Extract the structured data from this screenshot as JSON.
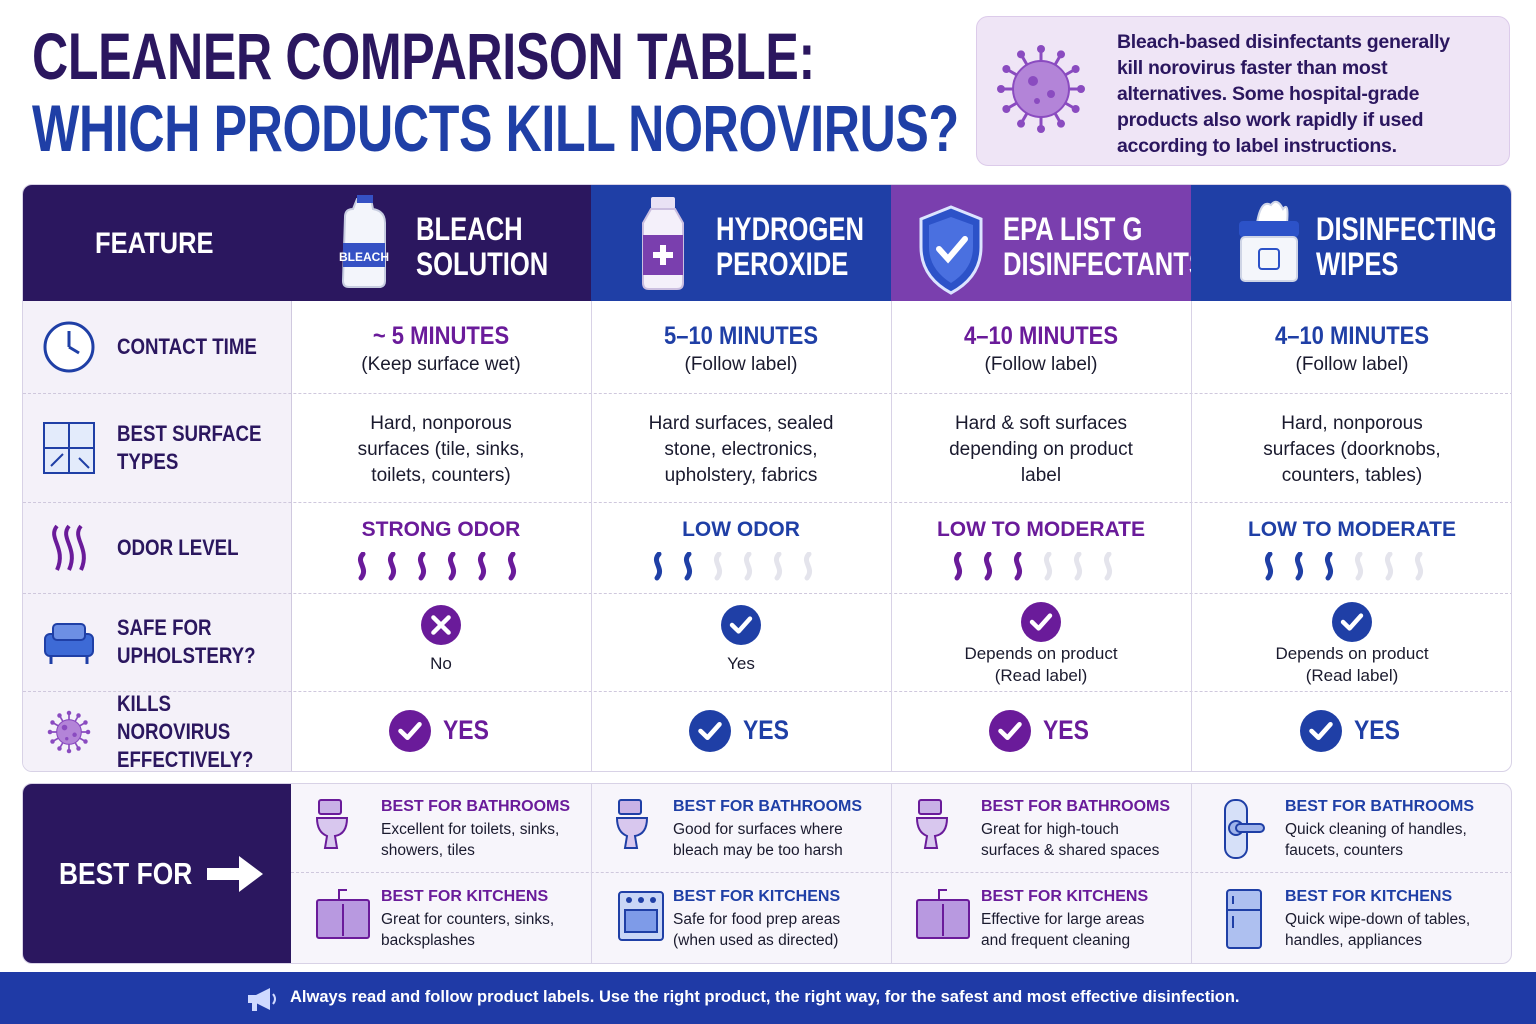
{
  "header": {
    "title_line1": "CLEANER COMPARISON TABLE:",
    "title_line2": "WHICH PRODUCTS KILL NOROVIRUS?"
  },
  "note": {
    "text": "Bleach-based disinfectants generally kill norovirus faster than most alternatives. Some hospital-grade products also work rapidly if used according to label instructions."
  },
  "table": {
    "feature_header": "FEATURE",
    "row_labels": [
      "CONTACT TIME",
      "BEST SURFACE TYPES",
      "ODOR LEVEL",
      "SAFE FOR UPHOLSTERY?",
      "KILLS NOROVIRUS EFFECTIVELY?"
    ],
    "odor_max": 6,
    "columns": [
      {
        "name": [
          "BLEACH",
          "SOLUTION"
        ],
        "icon_label": "BLEACH",
        "color": "#2b175f",
        "accent": "#6a1b9a",
        "contact_time": "~ 5 MINUTES",
        "contact_note": "(Keep surface wet)",
        "surfaces": "Hard, nonporous surfaces (tile, sinks, toilets, counters)",
        "odor": "STRONG ODOR",
        "odor_level": 6,
        "upholstery_safe": false,
        "upholstery": "No",
        "kills": "YES"
      },
      {
        "name": [
          "HYDROGEN",
          "PEROXIDE"
        ],
        "color": "#1f3fa6",
        "accent": "#1f3fa6",
        "contact_time": "5–10 MINUTES",
        "contact_note": "(Follow label)",
        "surfaces": "Hard surfaces, sealed stone, electronics, upholstery, fabrics",
        "odor": "LOW ODOR",
        "odor_level": 2,
        "upholstery_safe": true,
        "upholstery": "Yes",
        "kills": "YES"
      },
      {
        "name": [
          "EPA LIST G",
          "DISINFECTANTS"
        ],
        "color": "#7a3fae",
        "accent": "#6a1b9a",
        "contact_time": "4–10 MINUTES",
        "contact_note": "(Follow label)",
        "surfaces": "Hard & soft surfaces depending on product label",
        "odor": "LOW TO MODERATE",
        "odor_level": 3,
        "upholstery_safe": true,
        "upholstery": "Depends on product (Read label)",
        "kills": "YES"
      },
      {
        "name": [
          "DISINFECTING",
          "WIPES"
        ],
        "color": "#1f3fa6",
        "accent": "#1f3fa6",
        "contact_time": "4–10 MINUTES",
        "contact_note": "(Follow label)",
        "surfaces": "Hard, nonporous surfaces (doorknobs, counters, tables)",
        "odor": "LOW TO MODERATE",
        "odor_level": 3,
        "upholstery_safe": true,
        "upholstery": "Depends on product (Read label)",
        "kills": "YES"
      }
    ]
  },
  "best_for": {
    "label": "BEST FOR",
    "columns": [
      {
        "bathrooms_title": "BEST FOR BATHROOMS",
        "bathrooms": "Excellent for toilets, sinks, showers, tiles",
        "kitchens_title": "BEST FOR KITCHENS",
        "kitchens": "Great for counters, sinks, backsplashes"
      },
      {
        "bathrooms_title": "BEST FOR BATHROOMS",
        "bathrooms": "Good for surfaces where bleach may be too harsh",
        "kitchens_title": "BEST FOR KITCHENS",
        "kitchens": "Safe for food prep areas (when used as directed)"
      },
      {
        "bathrooms_title": "BEST FOR BATHROOMS",
        "bathrooms": "Great for high-touch surfaces & shared spaces",
        "kitchens_title": "BEST FOR KITCHENS",
        "kitchens": "Effective for large areas and frequent cleaning"
      },
      {
        "bathrooms_title": "BEST FOR BATHROOMS",
        "bathrooms": "Quick cleaning of handles, faucets, counters",
        "kitchens_title": "BEST FOR KITCHENS",
        "kitchens": "Quick wipe-down of tables, handles, appliances"
      }
    ]
  },
  "footer": "Always read and follow product labels. Use the right product, the right way, for the safest and most effective disinfection."
}
